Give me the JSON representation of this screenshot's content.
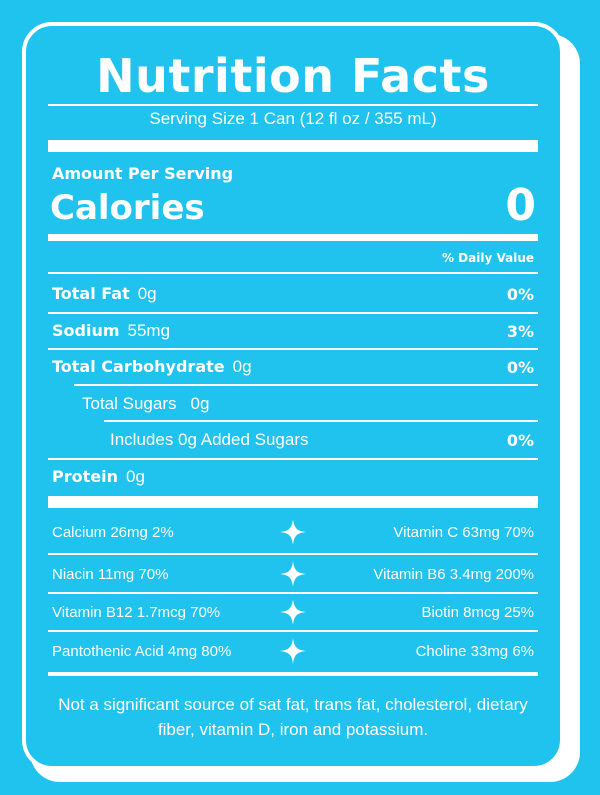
{
  "title": "Nutrition Facts",
  "serving_size": "Serving Size 1 Can (12 fl oz / 355 mL)",
  "amount_per_serving": "Amount Per Serving",
  "calories_label": "Calories",
  "calories_value": "0",
  "daily_value_header": "% Daily Value",
  "nutrients": [
    {
      "label": "Total Fat",
      "amount": "0g",
      "pct": "0%"
    },
    {
      "label": "Sodium",
      "amount": "55mg",
      "pct": "3%"
    },
    {
      "label": "Total Carbohydrate",
      "amount": "0g",
      "pct": "0%"
    },
    {
      "label": "Total Sugars",
      "amount": "0g",
      "pct": ""
    },
    {
      "label": "Includes 0g Added Sugars",
      "amount": "",
      "pct": "0%"
    },
    {
      "label": "Protein",
      "amount": "0g",
      "pct": ""
    }
  ],
  "vitamins": [
    {
      "left": "Calcium 26mg 2%",
      "right": "Vitamin C 63mg 70%"
    },
    {
      "left": "Niacin 11mg 70%",
      "right": "Vitamin B6 3.4mg 200%"
    },
    {
      "left": "Vitamin B12 1.7mcg 70%",
      "right": "Biotin 8mcg 25%"
    },
    {
      "left": "Pantothenic Acid 4mg 80%",
      "right": "Choline 33mg 6%"
    }
  ],
  "footer": "Not a significant source of sat fat, trans fat, cholesterol, dietary fiber, vitamin D, iron and potassium.",
  "colors": {
    "background": "#1fc3ed",
    "foreground": "#ffffff"
  },
  "separator_icon": "sparkle-icon"
}
